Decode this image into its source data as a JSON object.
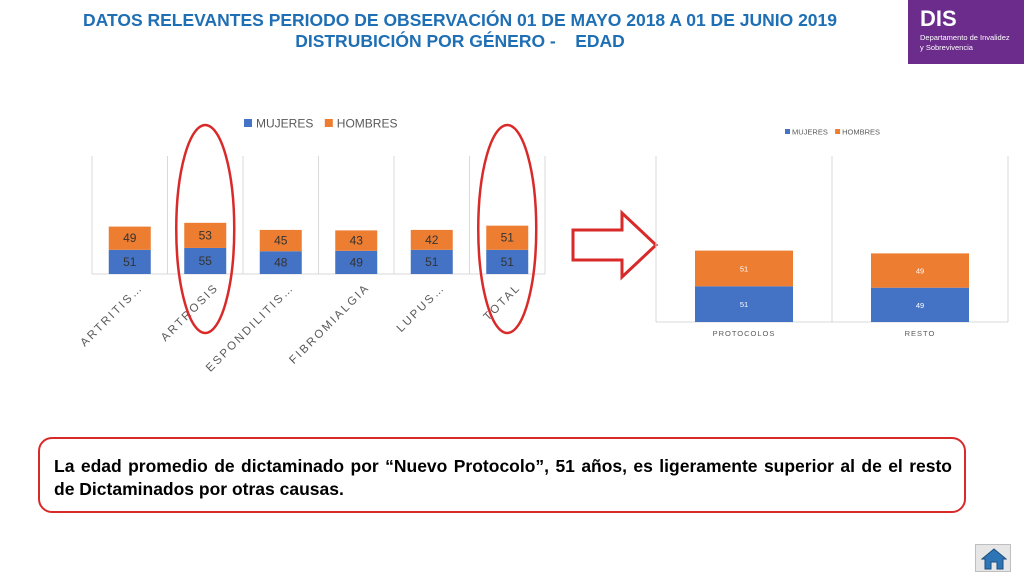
{
  "header": {
    "title_line1": "DATOS RELEVANTES PERIODO DE OBSERVACIÓN 01 DE MAYO 2018 A 01 DE JUNIO 2019",
    "title_line2": "DISTRUBICIÓN POR GÉNERO -    EDAD"
  },
  "logo": {
    "name": "DIS",
    "subtitle_line1": "Departamento de Invalidez",
    "subtitle_line2": "y Sobrevivencia",
    "background": "#6b2c8b"
  },
  "colors": {
    "mujeres": "#4472c4",
    "hombres": "#ed7d31",
    "highlight": "#d92a2a",
    "title": "#1f6fb5"
  },
  "chart_data": [
    {
      "type": "bar",
      "stacked": true,
      "categories": [
        "ARTRITIS…",
        "ARTROSIS",
        "ESPONDILITIS…",
        "FIBROMIALGIA",
        "LUPUS…",
        "TOTAL"
      ],
      "series": [
        {
          "name": "MUJERES",
          "values": [
            51,
            55,
            48,
            49,
            51,
            51
          ]
        },
        {
          "name": "HOMBRES",
          "values": [
            49,
            53,
            45,
            43,
            42,
            51
          ]
        }
      ],
      "legend": "top",
      "grid": false,
      "highlighted_categories": [
        "ARTROSIS",
        "TOTAL"
      ]
    },
    {
      "type": "bar",
      "stacked": true,
      "categories": [
        "PROTOCOLOS",
        "RESTO"
      ],
      "series": [
        {
          "name": "MUJERES",
          "values": [
            51,
            49
          ]
        },
        {
          "name": "HOMBRES",
          "values": [
            51,
            49
          ]
        }
      ],
      "legend": "top",
      "grid": false
    }
  ],
  "note": {
    "text": "La edad promedio de dictaminado por “Nuevo Protocolo”, 51 años, es ligeramente superior al de el resto de Dictaminados por otras causas."
  },
  "home_button": {
    "icon": "home-icon"
  }
}
